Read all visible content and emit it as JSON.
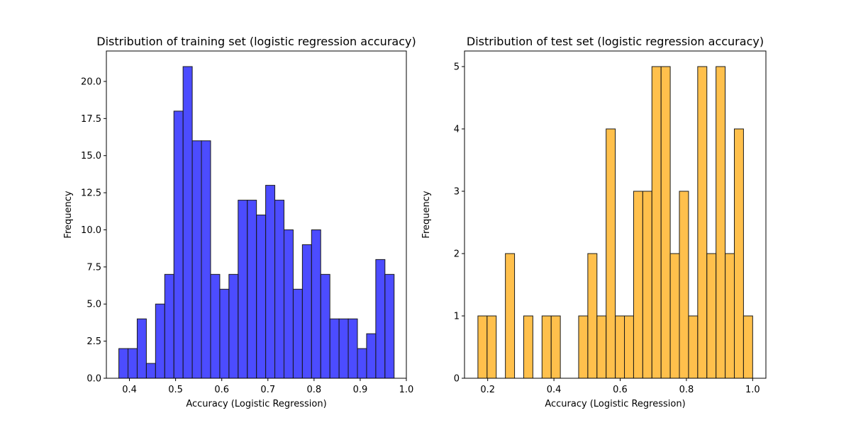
{
  "chart_data": [
    {
      "type": "bar",
      "title": "Distribution of training set (logistic regression accuracy)",
      "xlabel": "Accuracy (Logistic Regression)",
      "ylabel": "Frequency",
      "color": "#0000ff",
      "edge_color": "#1a1a1a",
      "xlim": [
        0.35,
        1.0
      ],
      "ylim": [
        0,
        22.05
      ],
      "xticks": [
        0.4,
        0.5,
        0.6,
        0.7,
        0.8,
        0.9,
        1.0
      ],
      "xtick_labels": [
        "0.4",
        "0.5",
        "0.6",
        "0.7",
        "0.8",
        "0.9",
        "1.0"
      ],
      "yticks": [
        0,
        2.5,
        5,
        7.5,
        10,
        12.5,
        15,
        17.5,
        20
      ],
      "ytick_labels": [
        "0.0",
        "2.5",
        "5.0",
        "7.5",
        "10.0",
        "12.5",
        "15.0",
        "17.5",
        "20.0"
      ],
      "grid": false,
      "bin_start": 0.377,
      "bin_end": 0.9735,
      "counts": [
        2,
        2,
        4,
        1,
        5,
        7,
        18,
        21,
        16,
        16,
        7,
        6,
        7,
        12,
        12,
        11,
        13,
        12,
        10,
        6,
        9,
        10,
        7,
        4,
        4,
        4,
        2,
        3,
        8,
        7
      ]
    },
    {
      "type": "bar",
      "title": "Distribution of test set (logistic regression accuracy)",
      "xlabel": "Accuracy (Logistic Regression)",
      "ylabel": "Frequency",
      "color": "#ffa500",
      "edge_color": "#1a1a1a",
      "xlim": [
        0.13,
        1.04
      ],
      "ylim": [
        0,
        5.25
      ],
      "xticks": [
        0.2,
        0.4,
        0.6,
        0.8,
        1.0
      ],
      "xtick_labels": [
        "0.2",
        "0.4",
        "0.6",
        "0.8",
        "1.0"
      ],
      "yticks": [
        0,
        1,
        2,
        3,
        4,
        5
      ],
      "ytick_labels": [
        "0",
        "1",
        "2",
        "3",
        "4",
        "5"
      ],
      "grid": false,
      "bin_start": 0.1705,
      "bin_end": 1.0,
      "counts": [
        1,
        1,
        0,
        2,
        0,
        1,
        0,
        1,
        1,
        0,
        0,
        1,
        2,
        1,
        4,
        1,
        1,
        3,
        3,
        5,
        5,
        2,
        3,
        1,
        5,
        2,
        5,
        2,
        4,
        1
      ]
    }
  ]
}
